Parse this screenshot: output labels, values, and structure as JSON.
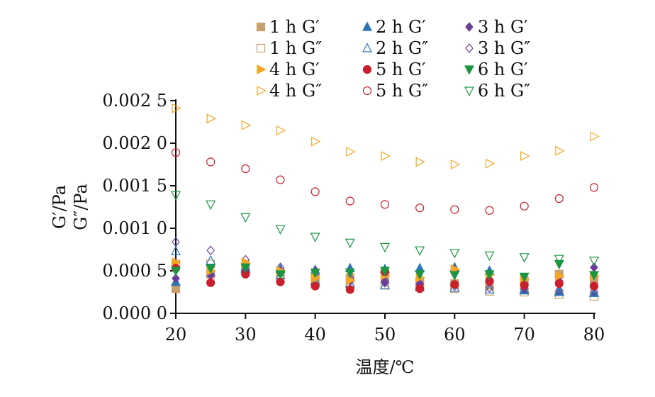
{
  "chart_data": {
    "type": "scatter",
    "xlabel": "温度/℃",
    "ylabel_lines": [
      "G′/Pa",
      "G″/Pa"
    ],
    "xlim": [
      20,
      80
    ],
    "ylim": [
      0,
      0.0025
    ],
    "xticks": [
      20,
      30,
      40,
      50,
      60,
      70,
      80
    ],
    "xtick_labels": [
      "20",
      "30",
      "40",
      "50",
      "60",
      "70",
      "80"
    ],
    "yticks": [
      0,
      0.0005,
      0.001,
      0.0015,
      0.002,
      0.0025
    ],
    "ytick_labels": [
      "0.000 0",
      "0.000 5",
      "0.001 0",
      "0.001 5",
      "0.002 0",
      "0.002 5"
    ],
    "grid": false,
    "legend_position": "top",
    "x": [
      20,
      25,
      30,
      35,
      40,
      45,
      50,
      55,
      60,
      65,
      70,
      75,
      80
    ],
    "series": [
      {
        "name": "1 h G′",
        "marker": "square",
        "filled": true,
        "color": "#C8A06E",
        "values": [
          0.00029,
          0.00046,
          0.00052,
          0.00048,
          0.00041,
          0.00042,
          0.0004,
          0.00037,
          0.00035,
          0.00033,
          0.00038,
          0.00046,
          0.0004
        ]
      },
      {
        "name": "1 h G″",
        "marker": "square",
        "filled": false,
        "color": "#C8A06E",
        "values": [
          0.00058,
          0.00058,
          0.00055,
          0.00046,
          0.00038,
          0.00035,
          0.00033,
          0.00031,
          0.00029,
          0.00026,
          0.00025,
          0.00022,
          0.0002
        ]
      },
      {
        "name": "2 h G′",
        "marker": "triangle-up",
        "filled": true,
        "color": "#2E75B6",
        "values": [
          0.00037,
          0.00048,
          0.00054,
          0.00052,
          0.00051,
          0.00053,
          0.00052,
          0.00053,
          0.00054,
          0.0005,
          0.00028,
          0.00026,
          0.00024
        ]
      },
      {
        "name": "2 h G″",
        "marker": "triangle-up",
        "filled": false,
        "color": "#2E75B6",
        "values": [
          0.00073,
          0.00062,
          0.00052,
          0.00045,
          0.00038,
          0.00035,
          0.00033,
          0.00031,
          0.0003,
          0.00028,
          0.00027,
          0.00025,
          0.00024
        ]
      },
      {
        "name": "3 h G′",
        "marker": "diamond",
        "filled": true,
        "color": "#6A3D9A",
        "values": [
          0.00041,
          0.00045,
          0.0005,
          0.0005,
          0.0005,
          0.00038,
          0.00036,
          0.00034,
          0.00051,
          0.00037,
          0.00031,
          0.00038,
          0.00054
        ]
      },
      {
        "name": "3 h G″",
        "marker": "diamond",
        "filled": false,
        "color": "#6A3D9A",
        "values": [
          0.00084,
          0.00074,
          0.00063,
          0.00054,
          0.00046,
          0.00041,
          0.00038,
          0.00035,
          0.00032,
          0.0003,
          0.00029,
          0.00027,
          0.00026
        ]
      },
      {
        "name": "4 h G′",
        "marker": "triangle-right",
        "filled": true,
        "color": "#F5A623",
        "values": [
          0.0006,
          0.0005,
          0.0006,
          0.0005,
          0.00042,
          0.00039,
          0.00045,
          0.00042,
          0.00052,
          0.00045,
          0.0004,
          0.00044,
          0.00044
        ]
      },
      {
        "name": "4 h G″",
        "marker": "triangle-right",
        "filled": false,
        "color": "#F5A623",
        "values": [
          0.00241,
          0.00229,
          0.00221,
          0.00215,
          0.00202,
          0.0019,
          0.00185,
          0.00178,
          0.00175,
          0.00176,
          0.00185,
          0.00191,
          0.00208
        ]
      },
      {
        "name": "5 h G′",
        "marker": "circle",
        "filled": true,
        "color": "#C8202E",
        "values": [
          0.00053,
          0.00036,
          0.00046,
          0.00037,
          0.00032,
          0.00028,
          0.00049,
          0.00029,
          0.00034,
          0.00038,
          0.00033,
          0.00035,
          0.00032
        ]
      },
      {
        "name": "5 h G″",
        "marker": "circle",
        "filled": false,
        "color": "#C8202E",
        "values": [
          0.00189,
          0.00178,
          0.0017,
          0.00157,
          0.00143,
          0.00132,
          0.00128,
          0.00124,
          0.00122,
          0.00121,
          0.00126,
          0.00135,
          0.00148
        ]
      },
      {
        "name": "6 h G′",
        "marker": "triangle-down",
        "filled": true,
        "color": "#1A9641",
        "values": [
          0.0005,
          0.00053,
          0.00054,
          0.00046,
          0.00048,
          0.00048,
          0.0005,
          0.00046,
          0.00045,
          0.00046,
          0.00043,
          0.00058,
          0.00045
        ]
      },
      {
        "name": "6 h G″",
        "marker": "triangle-down",
        "filled": false,
        "color": "#1A9641",
        "values": [
          0.00139,
          0.00128,
          0.00113,
          0.00099,
          0.0009,
          0.00083,
          0.00078,
          0.00074,
          0.00071,
          0.00068,
          0.00066,
          0.00064,
          0.00062
        ]
      }
    ]
  }
}
